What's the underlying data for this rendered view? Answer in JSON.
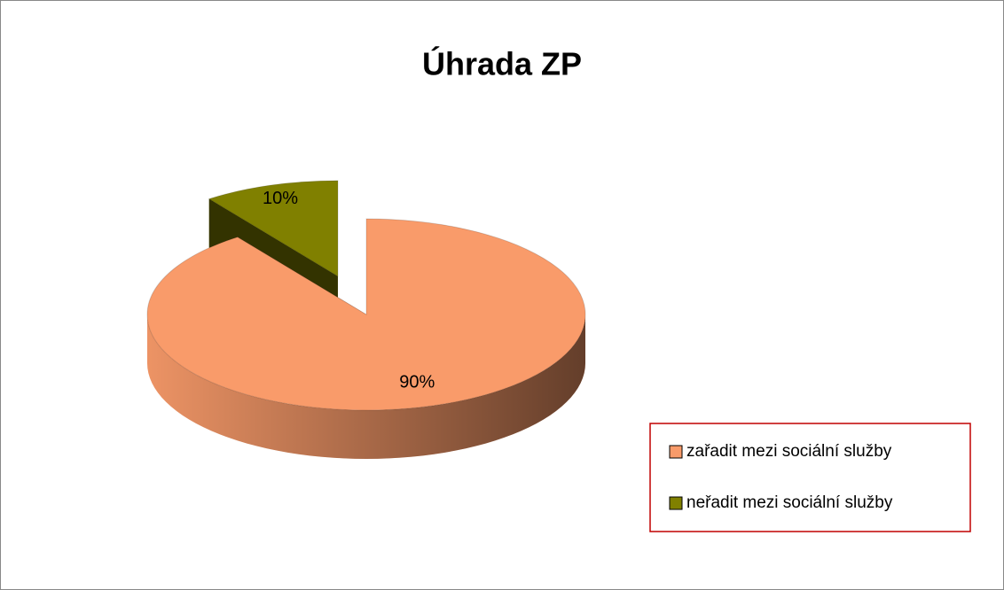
{
  "chart_data": {
    "type": "pie",
    "title": "Úhrada ZP",
    "categories": [
      "zařadit mezi sociální služby",
      "neřadit mezi sociální služby"
    ],
    "values": [
      90,
      10
    ],
    "value_labels": [
      "90%",
      "10%"
    ],
    "colors": [
      "#f99b6a",
      "#808000"
    ],
    "legend": "right"
  }
}
